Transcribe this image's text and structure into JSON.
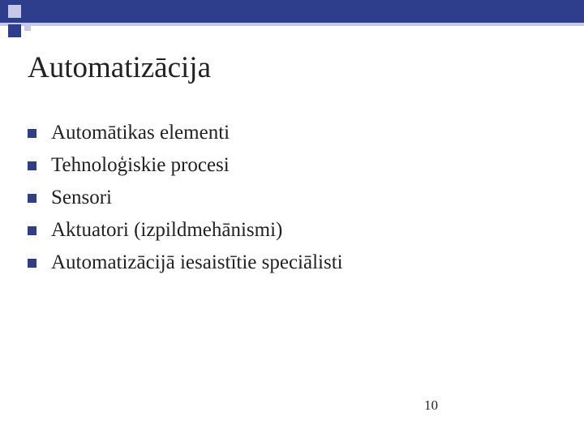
{
  "slide": {
    "title": "Automatizācija",
    "bullets": [
      "Automātikas elementi",
      "Tehnoloģiskie procesi",
      "Sensori",
      "Aktuatori (izpildmehānismi)",
      "Automatizācijā iesaistītie speciālisti"
    ],
    "page_number": "10"
  },
  "theme": {
    "header_bar_color": "#2e3e8c",
    "header_accent_color": "#c5cae9",
    "bullet_color": "#2e3e8c",
    "background_color": "#ffffff",
    "text_color": "#222222",
    "title_fontsize": 37,
    "item_fontsize": 25,
    "page_number_fontsize": 17,
    "font_family": "Times New Roman"
  }
}
